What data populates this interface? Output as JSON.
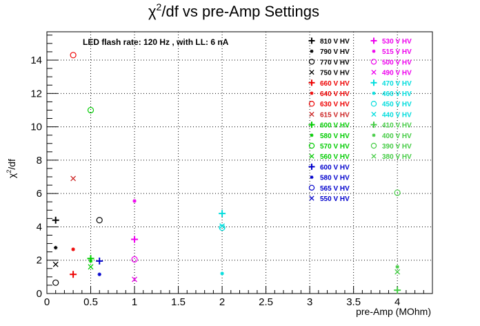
{
  "chart_data": {
    "type": "scatter",
    "title_main": "χ",
    "title_sup": "2",
    "title_rest": "/df vs pre-Amp Settings",
    "xlabel": "pre-Amp (MOhm)",
    "ylabel_main": "χ",
    "ylabel_sup": "2",
    "ylabel_rest": "/df",
    "annotation": "LED flash rate: 120 Hz , with LL: 6 nA",
    "xlim": [
      0,
      4.4
    ],
    "ylim": [
      0,
      15.7
    ],
    "grid": true,
    "legend_placement": "top-right",
    "x_ticks": [
      0,
      0.5,
      1,
      1.5,
      2,
      2.5,
      3,
      3.5,
      4
    ],
    "x_tick_labels": [
      "0",
      "0.5",
      "1",
      "1.5",
      "2",
      "2.5",
      "3",
      "3.5",
      "4"
    ],
    "y_ticks": [
      0,
      2,
      4,
      6,
      8,
      10,
      12,
      14
    ],
    "y_tick_labels": [
      "0",
      "2",
      "4",
      "6",
      "8",
      "10",
      "12",
      "14"
    ],
    "series": [
      {
        "name": "810 V HV",
        "color": "#000000",
        "marker": "plus",
        "points": [
          [
            0.1,
            4.4
          ]
        ]
      },
      {
        "name": "790 V HV",
        "color": "#000000",
        "marker": "star",
        "points": [
          [
            0.1,
            2.75
          ]
        ]
      },
      {
        "name": "770 V HV",
        "color": "#000000",
        "marker": "circle",
        "points": [
          [
            0.1,
            0.65
          ],
          [
            0.6,
            4.4
          ]
        ]
      },
      {
        "name": "750 V HV",
        "color": "#000000",
        "marker": "cross",
        "points": [
          [
            0.1,
            1.75
          ]
        ]
      },
      {
        "name": "660 V HV",
        "color": "#ee0000",
        "marker": "plus",
        "points": [
          [
            0.3,
            1.15
          ]
        ]
      },
      {
        "name": "640 V HV",
        "color": "#ee0000",
        "marker": "star",
        "points": [
          [
            0.3,
            2.65
          ]
        ]
      },
      {
        "name": "630 V HV",
        "color": "#ee0000",
        "marker": "circle",
        "points": [
          [
            0.3,
            14.3
          ]
        ]
      },
      {
        "name": "615 V HV",
        "color": "#cc2222",
        "marker": "cross",
        "points": [
          [
            0.3,
            6.9
          ]
        ]
      },
      {
        "name": "600 V HV",
        "color": "#00cc00",
        "marker": "plus",
        "points": [
          [
            0.5,
            2.1
          ]
        ]
      },
      {
        "name": "580 V HV",
        "color": "#00cc00",
        "marker": "star",
        "points": [
          [
            0.5,
            1.95
          ]
        ]
      },
      {
        "name": "570 V HV",
        "color": "#00cc00",
        "marker": "circle",
        "points": [
          [
            0.5,
            11.0
          ]
        ]
      },
      {
        "name": "560 V HV",
        "color": "#00cc00",
        "marker": "cross",
        "points": [
          [
            0.5,
            1.6
          ]
        ]
      },
      {
        "name": "600 V HV",
        "color": "#0000cc",
        "marker": "plus",
        "points": [
          [
            0.6,
            1.95
          ]
        ]
      },
      {
        "name": "580 V HV",
        "color": "#0000cc",
        "marker": "star",
        "points": [
          [
            0.6,
            1.15
          ]
        ]
      },
      {
        "name": "565 V HV",
        "color": "#0000cc",
        "marker": "circle",
        "points": []
      },
      {
        "name": "550 V HV",
        "color": "#0000cc",
        "marker": "cross",
        "points": []
      },
      {
        "name": "530 V HV",
        "color": "#ee00ee",
        "marker": "plus",
        "points": [
          [
            1.0,
            3.25
          ]
        ]
      },
      {
        "name": "515 V HV",
        "color": "#ee00ee",
        "marker": "star",
        "points": [
          [
            1.0,
            5.55
          ]
        ]
      },
      {
        "name": "500 V HV",
        "color": "#ee00ee",
        "marker": "circle",
        "points": [
          [
            1.0,
            2.05
          ]
        ]
      },
      {
        "name": "490 V HV",
        "color": "#ee00ee",
        "marker": "cross",
        "points": [
          [
            1.0,
            0.85
          ]
        ]
      },
      {
        "name": "470 V HV",
        "color": "#00dddd",
        "marker": "plus",
        "points": [
          [
            2.0,
            4.8
          ]
        ]
      },
      {
        "name": "460 V HV",
        "color": "#00dddd",
        "marker": "star",
        "points": [
          [
            2.0,
            1.2
          ]
        ]
      },
      {
        "name": "450 V HV",
        "color": "#00dddd",
        "marker": "circle",
        "points": [
          [
            2.0,
            3.95
          ]
        ]
      },
      {
        "name": "440 V HV",
        "color": "#00dddd",
        "marker": "cross",
        "points": [
          [
            2.0,
            4.05
          ]
        ]
      },
      {
        "name": "410 V HV",
        "color": "#44cc44",
        "marker": "plus",
        "points": [
          [
            4.0,
            0.2
          ]
        ]
      },
      {
        "name": "400 V HV",
        "color": "#44cc44",
        "marker": "star",
        "points": [
          [
            4.0,
            1.6
          ]
        ]
      },
      {
        "name": "390 V HV",
        "color": "#44cc44",
        "marker": "circle",
        "points": [
          [
            4.0,
            6.05
          ]
        ]
      },
      {
        "name": "380 V HV",
        "color": "#44cc44",
        "marker": "cross",
        "points": [
          [
            4.0,
            1.3
          ]
        ]
      }
    ]
  }
}
